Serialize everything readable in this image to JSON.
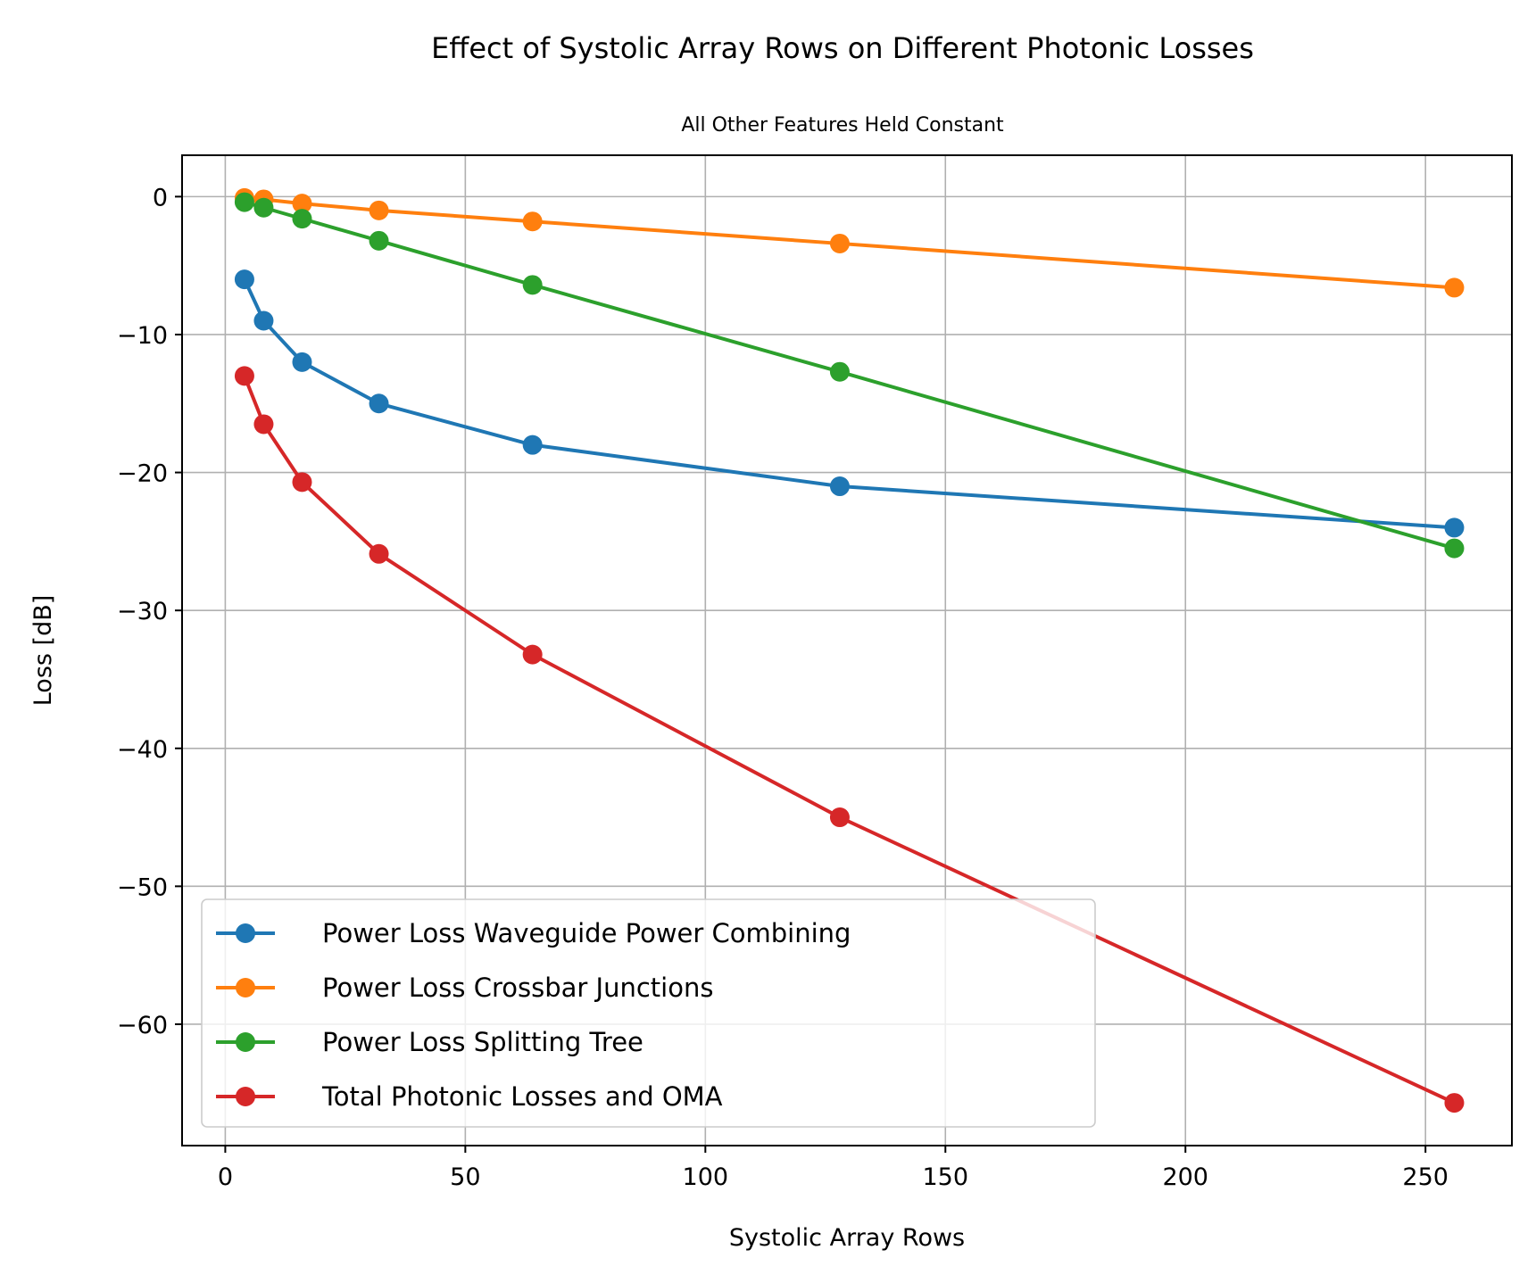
{
  "chart_data": {
    "type": "line",
    "title": "Effect of Systolic Array Rows on Different Photonic Losses",
    "subtitle": "All Other Features Held Constant",
    "xlabel": "Systolic Array Rows",
    "ylabel": "Loss [dB]",
    "xlim": [
      -9,
      268
    ],
    "ylim": [
      -68.8,
      3
    ],
    "x_ticks": [
      0,
      50,
      100,
      150,
      200,
      250
    ],
    "x_tick_labels": [
      "0",
      "50",
      "100",
      "150",
      "200",
      "250"
    ],
    "y_ticks": [
      0,
      -10,
      -20,
      -30,
      -40,
      -50,
      -60
    ],
    "y_tick_labels": [
      "0",
      "−10",
      "−20",
      "−30",
      "−40",
      "−50",
      "−60"
    ],
    "grid": true,
    "legend_position": "lower-left",
    "x": [
      4,
      8,
      16,
      32,
      64,
      128,
      256
    ],
    "series": [
      {
        "name": "Power Loss Waveguide Power Combining",
        "color": "#1f77b4",
        "values": [
          -6.0,
          -9.0,
          -12.0,
          -15.0,
          -18.0,
          -21.0,
          -24.0
        ]
      },
      {
        "name": "Power Loss Crossbar Junctions",
        "color": "#ff7f0e",
        "values": [
          -0.1,
          -0.2,
          -0.5,
          -1.0,
          -1.8,
          -3.4,
          -6.6
        ]
      },
      {
        "name": "Power Loss Splitting Tree",
        "color": "#2ca02c",
        "values": [
          -0.4,
          -0.8,
          -1.6,
          -3.2,
          -6.4,
          -12.7,
          -25.5
        ]
      },
      {
        "name": "Total Photonic Losses and OMA",
        "color": "#d62728",
        "values": [
          -13.0,
          -16.5,
          -20.7,
          -25.9,
          -33.2,
          -45.0,
          -65.7
        ]
      }
    ]
  }
}
